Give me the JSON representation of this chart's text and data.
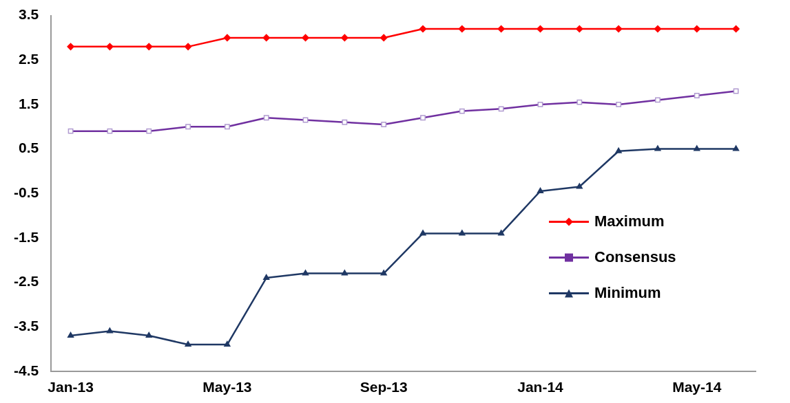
{
  "chart_data": {
    "type": "line",
    "categories": [
      "Jan-13",
      null,
      null,
      null,
      "May-13",
      null,
      null,
      null,
      "Sep-13",
      null,
      null,
      null,
      "Jan-14",
      null,
      null,
      null,
      "May-14",
      null
    ],
    "series": [
      {
        "name": "Maximum",
        "color": "#ff0000",
        "marker": "diamond",
        "values": [
          2.8,
          2.8,
          2.8,
          2.8,
          3.0,
          3.0,
          3.0,
          3.0,
          3.0,
          3.2,
          3.2,
          3.2,
          3.2,
          3.2,
          3.2,
          3.2,
          3.2,
          3.2
        ]
      },
      {
        "name": "Consensus",
        "color": "#7030a0",
        "marker": "square",
        "values": [
          0.9,
          0.9,
          0.9,
          1.0,
          1.0,
          1.2,
          1.15,
          1.1,
          1.05,
          1.2,
          1.35,
          1.4,
          1.5,
          1.55,
          1.5,
          1.6,
          1.7,
          1.8
        ]
      },
      {
        "name": "Minimum",
        "color": "#1f3864",
        "marker": "triangle",
        "values": [
          -3.7,
          -3.6,
          -3.7,
          -3.9,
          -3.9,
          -2.4,
          -2.3,
          -2.3,
          -2.3,
          -1.4,
          -1.4,
          -1.4,
          -0.45,
          -0.35,
          0.45,
          0.5,
          0.5,
          0.5
        ]
      }
    ],
    "ylim": [
      -4.5,
      3.5
    ],
    "yticks": [
      -4.5,
      -3.5,
      -2.5,
      -1.5,
      -0.5,
      0.5,
      1.5,
      2.5,
      3.5
    ],
    "grid": false,
    "legend": "right",
    "line_style": "solid"
  }
}
